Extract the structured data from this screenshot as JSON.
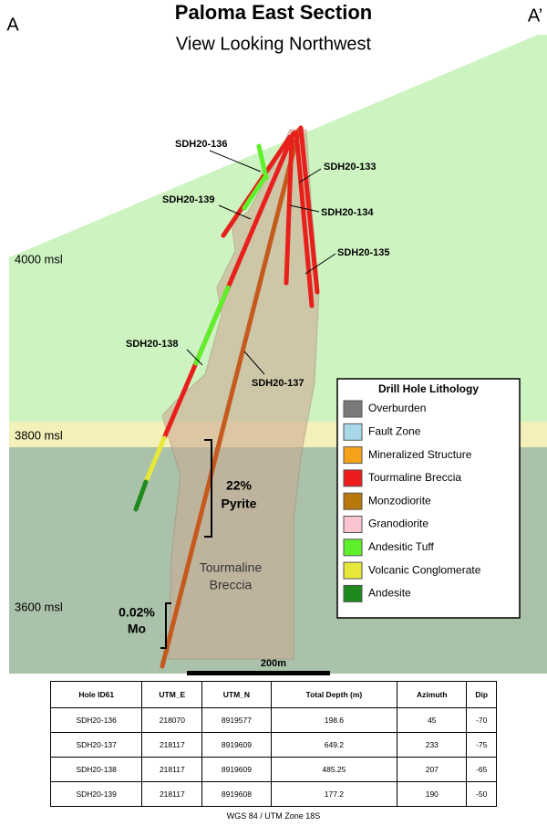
{
  "header": {
    "title": "Paloma East Section",
    "subtitle": "View Looking Northwest",
    "left_corner": "A",
    "right_corner": "A’"
  },
  "elevations": [
    "4000 msl",
    "3800 msl",
    "3600 msl"
  ],
  "holes": [
    {
      "label": "SDH20-136"
    },
    {
      "label": "SDH20-133"
    },
    {
      "label": "SDH20-139"
    },
    {
      "label": "SDH20-134"
    },
    {
      "label": "SDH20-135"
    },
    {
      "label": "SDH20-138"
    },
    {
      "label": "SDH20-137"
    }
  ],
  "annotations": {
    "pyrite_pct": "22%",
    "pyrite": "Pyrite",
    "mo_pct": "0.02%",
    "mo": "Mo",
    "breccia_line1": "Tourmaline",
    "breccia_line2": "Breccia",
    "scale": "200m"
  },
  "legend": {
    "title": "Drill Hole Lithology",
    "items": [
      {
        "label": "Overburden",
        "color": "#7a7a7a"
      },
      {
        "label": "Fault Zone",
        "color": "#a9d8ea"
      },
      {
        "label": "Mineralized Structure",
        "color": "#f7a21b"
      },
      {
        "label": "Tourmaline Breccia",
        "color": "#ee1c1c"
      },
      {
        "label": "Monzodiorite",
        "color": "#b8780c"
      },
      {
        "label": "Granodiorite",
        "color": "#f9c3cf"
      },
      {
        "label": "Andesitic Tuff",
        "color": "#5ef02a"
      },
      {
        "label": "Volcanic Conglomerate",
        "color": "#e7e73a"
      },
      {
        "label": "Andesite",
        "color": "#1e8a1e"
      }
    ]
  },
  "table": {
    "header": [
      "Hole ID61",
      "UTM_E",
      "UTM_N",
      "Total Depth (m)",
      "Azimuth",
      "Dip"
    ],
    "rows": [
      [
        "SDH20-136",
        218070,
        8919577,
        198.6,
        45,
        -70
      ],
      [
        "SDH20-137",
        218117,
        8919609,
        649.2,
        233,
        -75
      ],
      [
        "SDH20-138",
        218117,
        8919609,
        485.25,
        207,
        -65
      ],
      [
        "SDH20-139",
        218117,
        8919608,
        177.2,
        190,
        -50
      ]
    ]
  },
  "footer": "WGS 84 / UTM Zone 18S"
}
